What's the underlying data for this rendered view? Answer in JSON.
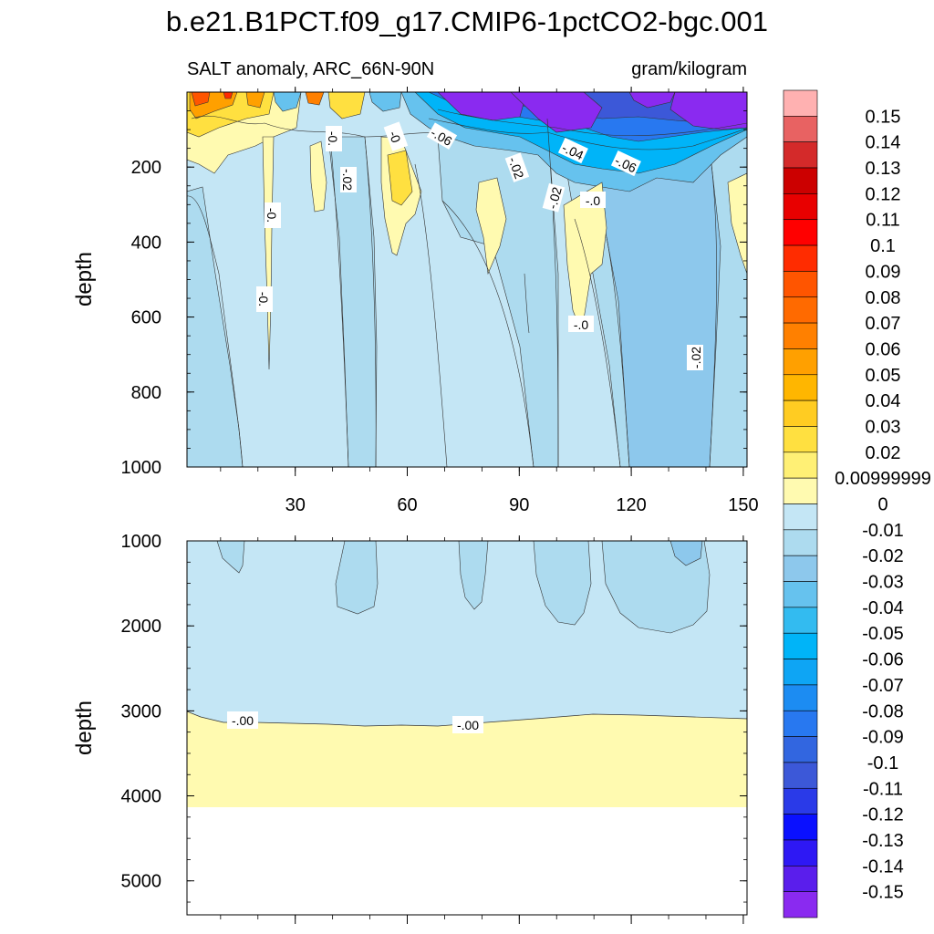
{
  "chart_data": {
    "type": "heatmap",
    "title": "b.e21.B1PCT.f09_g17.CMIP6-1pctCO2-bgc.001",
    "left_subtitle": "SALT anomaly, ARC_66N-90N",
    "right_subtitle": "gram/kilogram",
    "xlabel": "",
    "ylabel": "depth",
    "xlim": [
      1,
      151
    ],
    "x_ticks": [
      30,
      60,
      90,
      120,
      150
    ],
    "panels": [
      {
        "name": "upper",
        "ylim": [
          0,
          1000
        ],
        "y_ticks": [
          200,
          400,
          600,
          800,
          1000
        ],
        "contour_labels": [
          "-0.",
          "-0.",
          "-0.",
          "-.02",
          "-0",
          "-.06",
          "-.04",
          "-.06",
          "-.02",
          "-.02",
          "-.0",
          "-.0",
          "-.02"
        ]
      },
      {
        "name": "lower",
        "ylim": [
          1000,
          5400
        ],
        "y_ticks": [
          1000,
          2000,
          3000,
          4000,
          5000
        ],
        "contour_labels": [
          "-.00",
          "-.00"
        ],
        "zero_contour_depth": 3100,
        "data_bottom_depth": 4120
      }
    ],
    "colorbar": {
      "labels": [
        "0.15",
        "0.14",
        "0.13",
        "0.12",
        "0.11",
        "0.1",
        "0.09",
        "0.08",
        "0.07",
        "0.06",
        "0.05",
        "0.04",
        "0.03",
        "0.02",
        "0.00999999",
        "0",
        "-0.01",
        "-0.02",
        "-0.03",
        "-0.04",
        "-0.05",
        "-0.06",
        "-0.07",
        "-0.08",
        "-0.09",
        "-0.1",
        "-0.11",
        "-0.12",
        "-0.13",
        "-0.14",
        "-0.15"
      ],
      "colors": [
        "#FFB1B1",
        "#E86262",
        "#D42A2A",
        "#CC0000",
        "#E80000",
        "#FF0000",
        "#FF2C00",
        "#FF5500",
        "#FF6A00",
        "#FF8000",
        "#FFA000",
        "#FFB600",
        "#FFCC22",
        "#FFE040",
        "#FFF075",
        "#FFFAB0",
        "#C4E6F5",
        "#ADDBEF",
        "#8DC8EC",
        "#66C2EE",
        "#33BBF0",
        "#00B4F8",
        "#0EA5F4",
        "#1C8CF2",
        "#2878F0",
        "#3266E0",
        "#3C58D8",
        "#2A3AE8",
        "#0A10FF",
        "#2E18F4",
        "#5A1EEC",
        "#8A2AF0"
      ]
    }
  }
}
